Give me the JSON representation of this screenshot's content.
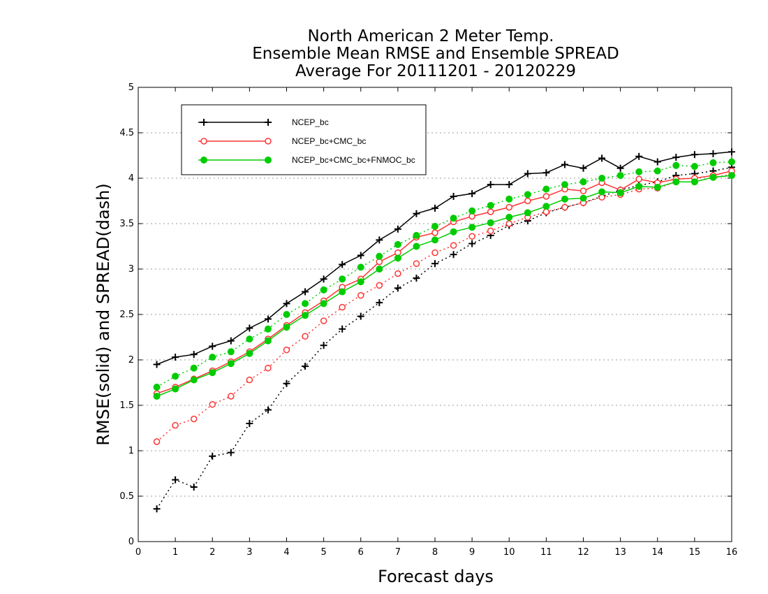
{
  "chart_data": {
    "type": "line",
    "title": [
      "North American 2 Meter Temp.",
      "Ensemble Mean RMSE and Ensemble SPREAD",
      "Average For 20111201 - 20120229"
    ],
    "xlabel": "Forecast days",
    "ylabel": "RMSE(solid) and SPREAD(dash)",
    "xlim": [
      0,
      16
    ],
    "ylim": [
      0,
      5
    ],
    "x_ticks": [
      "0",
      "1",
      "2",
      "3",
      "4",
      "5",
      "6",
      "7",
      "8",
      "9",
      "10",
      "11",
      "12",
      "13",
      "14",
      "15",
      "16"
    ],
    "y_ticks": [
      "0",
      "0.5",
      "1",
      "1.5",
      "2",
      "2.5",
      "3",
      "3.5",
      "4",
      "4.5",
      "5"
    ],
    "grid": "horizontal dotted",
    "legend_position": "top-left",
    "x": [
      0.5,
      1,
      1.5,
      2,
      2.5,
      3,
      3.5,
      4,
      4.5,
      5,
      5.5,
      6,
      6.5,
      7,
      7.5,
      8,
      8.5,
      9,
      9.5,
      10,
      10.5,
      11,
      11.5,
      12,
      12.5,
      13,
      13.5,
      14,
      14.5,
      15,
      15.5,
      16
    ],
    "series": [
      {
        "name": "NCEP_bc",
        "color": "#000000",
        "marker": "plus",
        "rmse": [
          1.95,
          2.03,
          2.06,
          2.15,
          2.21,
          2.35,
          2.45,
          2.62,
          2.75,
          2.89,
          3.05,
          3.15,
          3.32,
          3.44,
          3.61,
          3.67,
          3.8,
          3.83,
          3.93,
          3.93,
          4.05,
          4.06,
          4.15,
          4.11,
          4.22,
          4.11,
          4.24,
          4.18,
          4.23,
          4.26,
          4.27,
          4.29
        ],
        "spread": [
          0.36,
          0.68,
          0.6,
          0.94,
          0.98,
          1.3,
          1.45,
          1.74,
          1.93,
          2.16,
          2.34,
          2.48,
          2.63,
          2.79,
          2.9,
          3.06,
          3.16,
          3.28,
          3.37,
          3.48,
          3.53,
          3.62,
          3.68,
          3.73,
          3.8,
          3.87,
          3.92,
          3.96,
          4.03,
          4.05,
          4.08,
          4.12
        ]
      },
      {
        "name": "NCEP_bc+CMC_bc",
        "color": "#ff3333",
        "marker": "open-circle",
        "rmse": [
          1.63,
          1.7,
          1.79,
          1.88,
          1.98,
          2.09,
          2.23,
          2.38,
          2.52,
          2.65,
          2.8,
          2.89,
          3.08,
          3.18,
          3.35,
          3.4,
          3.52,
          3.58,
          3.63,
          3.68,
          3.75,
          3.8,
          3.88,
          3.86,
          3.95,
          3.87,
          3.99,
          3.95,
          3.99,
          4.0,
          4.03,
          4.08
        ],
        "spread": [
          1.1,
          1.28,
          1.35,
          1.51,
          1.6,
          1.78,
          1.91,
          2.11,
          2.26,
          2.43,
          2.58,
          2.71,
          2.82,
          2.95,
          3.06,
          3.18,
          3.26,
          3.36,
          3.42,
          3.5,
          3.57,
          3.63,
          3.68,
          3.73,
          3.79,
          3.82,
          3.88,
          3.89,
          3.96,
          3.96,
          4.01,
          4.04
        ]
      },
      {
        "name": "NCEP_bc+CMC_bc+FNMOC_bc",
        "color": "#00cc00",
        "marker": "filled-circle",
        "rmse": [
          1.6,
          1.68,
          1.78,
          1.86,
          1.96,
          2.07,
          2.21,
          2.36,
          2.49,
          2.62,
          2.75,
          2.86,
          3.0,
          3.12,
          3.25,
          3.32,
          3.41,
          3.46,
          3.51,
          3.57,
          3.62,
          3.69,
          3.77,
          3.78,
          3.85,
          3.84,
          3.91,
          3.9,
          3.96,
          3.96,
          4.01,
          4.03
        ],
        "spread": [
          1.7,
          1.82,
          1.91,
          2.03,
          2.09,
          2.23,
          2.34,
          2.5,
          2.62,
          2.77,
          2.89,
          3.02,
          3.14,
          3.27,
          3.37,
          3.47,
          3.56,
          3.64,
          3.7,
          3.77,
          3.82,
          3.88,
          3.93,
          3.96,
          4.0,
          4.03,
          4.07,
          4.08,
          4.14,
          4.13,
          4.17,
          4.18
        ]
      }
    ]
  }
}
